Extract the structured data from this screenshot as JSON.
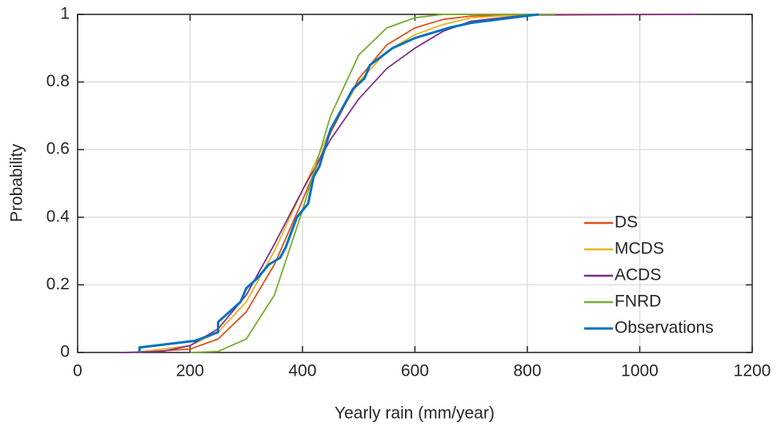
{
  "chart_data": {
    "type": "line",
    "xlabel": "Yearly rain (mm/year)",
    "ylabel": "Probability",
    "xlim": [
      0,
      1200
    ],
    "ylim": [
      0,
      1
    ],
    "xticks": [
      0,
      200,
      400,
      600,
      800,
      1000,
      1200
    ],
    "yticks": [
      0,
      0.2,
      0.4,
      0.6,
      0.8,
      1
    ],
    "grid": true,
    "legend": "lower right",
    "series": [
      {
        "name": "DS",
        "color": "#d95319",
        "x": [
          100,
          200,
          250,
          300,
          350,
          400,
          450,
          500,
          550,
          600,
          650,
          700,
          800,
          1100
        ],
        "values": [
          0,
          0.01,
          0.04,
          0.12,
          0.26,
          0.45,
          0.65,
          0.81,
          0.91,
          0.96,
          0.985,
          0.995,
          1,
          1
        ]
      },
      {
        "name": "MCDS",
        "color": "#edb120",
        "x": [
          100,
          200,
          250,
          300,
          350,
          400,
          450,
          500,
          550,
          600,
          650,
          700,
          800,
          1100
        ],
        "values": [
          0,
          0.02,
          0.06,
          0.15,
          0.3,
          0.48,
          0.66,
          0.8,
          0.89,
          0.94,
          0.97,
          0.99,
          1,
          1
        ]
      },
      {
        "name": "ACDS",
        "color": "#7e2f8e",
        "x": [
          80,
          150,
          200,
          250,
          300,
          350,
          400,
          450,
          500,
          550,
          600,
          650,
          700,
          800,
          1100
        ],
        "values": [
          0,
          0.003,
          0.02,
          0.07,
          0.17,
          0.32,
          0.48,
          0.63,
          0.75,
          0.84,
          0.9,
          0.95,
          0.98,
          0.998,
          1
        ]
      },
      {
        "name": "FNRD",
        "color": "#77ac30",
        "x": [
          200,
          250,
          300,
          350,
          400,
          450,
          500,
          550,
          600,
          650,
          850
        ],
        "values": [
          0,
          0.003,
          0.04,
          0.17,
          0.42,
          0.7,
          0.88,
          0.96,
          0.99,
          1,
          1
        ]
      },
      {
        "name": "Observations",
        "color": "#0072bd",
        "x": [
          110,
          110,
          210,
          250,
          250,
          290,
          300,
          320,
          340,
          360,
          370,
          390,
          410,
          420,
          430,
          450,
          470,
          490,
          510,
          520,
          560,
          600,
          660,
          700,
          820
        ],
        "values": [
          0,
          0.015,
          0.035,
          0.06,
          0.09,
          0.15,
          0.19,
          0.22,
          0.26,
          0.28,
          0.31,
          0.4,
          0.44,
          0.52,
          0.55,
          0.66,
          0.72,
          0.78,
          0.81,
          0.85,
          0.9,
          0.93,
          0.96,
          0.975,
          1
        ]
      }
    ]
  }
}
